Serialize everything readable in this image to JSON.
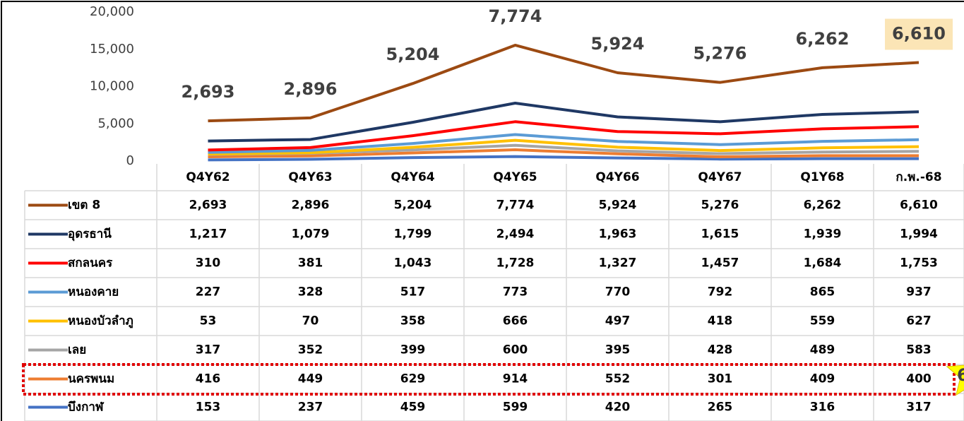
{
  "chart_data": {
    "type": "line",
    "stacked": true,
    "categories": [
      "Q4Y62",
      "Q4Y63",
      "Q4Y64",
      "Q4Y65",
      "Q4Y66",
      "Q4Y67",
      "Q1Y68",
      "ก.พ.-68"
    ],
    "ylim": [
      0,
      20000
    ],
    "yticks": [
      0,
      {
        "value": 5000,
        "label": "5,000"
      },
      {
        "value": 10000,
        "label": "10,000"
      },
      {
        "value": 15000,
        "label": "15,000"
      },
      {
        "value": 20000,
        "label": "20,000"
      }
    ],
    "series": [
      {
        "name": "เขต 8",
        "color": "#9c4a12",
        "values": [
          2693,
          2896,
          5204,
          7774,
          5924,
          5276,
          6262,
          6610
        ],
        "value_labels": [
          "2,693",
          "2,896",
          "5,204",
          "7,774",
          "5,924",
          "5,276",
          "6,262",
          "6,610"
        ]
      },
      {
        "name": "อุดรธานี",
        "color": "#1f3864",
        "values": [
          1217,
          1079,
          1799,
          2494,
          1963,
          1615,
          1939,
          1994
        ],
        "value_labels": [
          "1,217",
          "1,079",
          "1,799",
          "2,494",
          "1,963",
          "1,615",
          "1,939",
          "1,994"
        ]
      },
      {
        "name": "สกลนคร",
        "color": "#ff0000",
        "values": [
          310,
          381,
          1043,
          1728,
          1327,
          1457,
          1684,
          1753
        ],
        "value_labels": [
          "310",
          "381",
          "1,043",
          "1,728",
          "1,327",
          "1,457",
          "1,684",
          "1,753"
        ]
      },
      {
        "name": "หนองคาย",
        "color": "#5b9bd5",
        "values": [
          227,
          328,
          517,
          773,
          770,
          792,
          865,
          937
        ]
      },
      {
        "name": "หนองบัวลำภู",
        "color": "#ffc000",
        "values": [
          53,
          70,
          358,
          666,
          497,
          418,
          559,
          627
        ]
      },
      {
        "name": "เลย",
        "color": "#a5a5a5",
        "values": [
          317,
          352,
          399,
          600,
          395,
          428,
          489,
          583
        ]
      },
      {
        "name": "นครพนม",
        "color": "#ed7d31",
        "values": [
          416,
          449,
          629,
          914,
          552,
          301,
          409,
          400
        ]
      },
      {
        "name": "บึงกาฬ",
        "color": "#4472c4",
        "values": [
          153,
          237,
          459,
          599,
          420,
          265,
          316,
          317
        ]
      }
    ],
    "annotation": "6"
  }
}
